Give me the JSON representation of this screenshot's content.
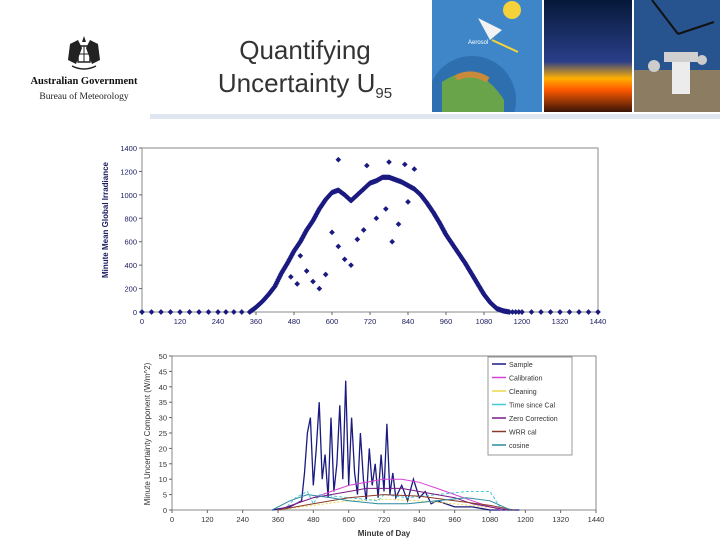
{
  "header": {
    "title_line1": "Quantifying",
    "title_line2": "Uncertainty U",
    "title_subscript": "95",
    "org_name": "Australian Government",
    "org_unit": "Bureau of Meteorology",
    "aerosol_label": "Aerosol"
  },
  "colors": {
    "navy": "#1a1a80",
    "sample": "#1a1a80",
    "calibration": "#d642d6",
    "cleaning": "#e8d84c",
    "time_since_cal": "#46c9d6",
    "zero_correction": "#7a1a8a",
    "wrr_cal": "#8a3a2a",
    "cosine": "#2a8aa0"
  },
  "chart_data": [
    {
      "type": "scatter",
      "title": "",
      "xlabel": "",
      "ylabel": "Minute Mean Global Irradiance",
      "xlim": [
        0,
        1440
      ],
      "ylim": [
        0,
        1400
      ],
      "xticks": [
        0,
        120,
        240,
        360,
        480,
        600,
        720,
        840,
        960,
        1080,
        1200,
        1320,
        1440
      ],
      "yticks": [
        0,
        200,
        400,
        600,
        800,
        1000,
        1200,
        1400
      ],
      "grid": false,
      "series": [
        {
          "x": [
            0,
            120,
            240,
            340,
            360,
            380,
            400,
            420,
            440,
            460,
            480,
            500,
            520,
            540,
            560,
            580,
            600,
            620,
            640,
            660,
            680,
            700,
            720,
            740,
            760,
            780,
            800,
            820,
            840,
            860,
            880,
            900,
            920,
            940,
            960,
            980,
            1000,
            1020,
            1040,
            1060,
            1080,
            1100,
            1120,
            1140,
            1160,
            1200,
            1320,
            1440
          ],
          "y": [
            0,
            0,
            0,
            0,
            40,
            90,
            150,
            220,
            330,
            420,
            520,
            600,
            700,
            780,
            880,
            960,
            1020,
            1040,
            1000,
            950,
            1000,
            1050,
            1100,
            1120,
            1150,
            1150,
            1130,
            1110,
            1080,
            1050,
            1000,
            930,
            850,
            760,
            660,
            580,
            500,
            420,
            330,
            240,
            150,
            80,
            30,
            10,
            0,
            0,
            0,
            0
          ]
        },
        {
          "x": [
            470,
            490,
            500,
            520,
            540,
            560,
            580,
            600,
            620,
            640,
            660,
            680,
            700,
            740,
            770,
            790,
            810,
            840
          ],
          "y": [
            300,
            240,
            480,
            350,
            260,
            200,
            320,
            680,
            560,
            450,
            400,
            620,
            700,
            800,
            880,
            600,
            750,
            940
          ]
        },
        {
          "x": [
            620,
            710,
            780,
            830,
            860
          ],
          "y": [
            1300,
            1250,
            1280,
            1260,
            1220
          ]
        }
      ]
    },
    {
      "type": "line",
      "title": "",
      "xlabel": "Minute of Day",
      "ylabel": "Minute Uncertainty Component (W/m^2)",
      "xlim": [
        0,
        1440
      ],
      "ylim": [
        0,
        50
      ],
      "xticks": [
        0,
        120,
        240,
        360,
        480,
        600,
        720,
        840,
        960,
        1080,
        1200,
        1320,
        1440
      ],
      "yticks": [
        0,
        5,
        10,
        15,
        20,
        25,
        30,
        35,
        40,
        45,
        50
      ],
      "legend": "top-right",
      "series": [
        {
          "name": "Sample",
          "x": [
            340,
            400,
            440,
            450,
            460,
            470,
            480,
            490,
            500,
            510,
            520,
            530,
            540,
            550,
            560,
            570,
            580,
            590,
            600,
            610,
            620,
            630,
            640,
            650,
            660,
            670,
            680,
            690,
            700,
            710,
            720,
            730,
            740,
            750,
            760,
            780,
            800,
            820,
            840,
            860,
            880,
            900,
            960,
            1020,
            1080,
            1180
          ],
          "y": [
            0,
            1,
            3,
            12,
            25,
            30,
            8,
            20,
            35,
            10,
            18,
            4,
            30,
            6,
            15,
            34,
            10,
            42,
            8,
            30,
            12,
            5,
            25,
            10,
            3,
            20,
            8,
            15,
            4,
            18,
            6,
            28,
            5,
            12,
            4,
            8,
            3,
            10,
            4,
            6,
            2,
            3,
            1,
            1,
            0,
            0
          ]
        },
        {
          "name": "Calibration",
          "x": [
            360,
            420,
            480,
            540,
            600,
            660,
            720,
            780,
            840,
            900,
            960,
            1020,
            1080,
            1120
          ],
          "y": [
            0,
            2,
            4,
            6,
            8,
            9,
            10,
            10,
            9,
            7,
            5,
            3,
            1,
            0
          ]
        },
        {
          "name": "Cleaning",
          "x": [
            360,
            480,
            600,
            720,
            840,
            960,
            1080,
            1140
          ],
          "y": [
            0,
            1.5,
            3,
            3.5,
            3,
            2,
            0.8,
            0
          ]
        },
        {
          "name": "Time since Cal",
          "x": [
            380,
            420,
            460,
            480,
            500,
            600,
            700,
            720,
            800,
            900,
            1000,
            1080,
            1120
          ],
          "y": [
            0,
            4,
            6,
            2,
            5,
            4,
            3,
            5,
            4,
            5,
            6,
            6,
            0
          ]
        },
        {
          "name": "Zero Correction",
          "x": [
            360,
            420,
            480,
            540,
            600,
            660,
            720,
            780,
            840,
            900,
            960,
            1020,
            1080,
            1140
          ],
          "y": [
            0,
            2,
            4,
            5,
            6,
            7,
            7,
            7,
            6,
            5,
            4,
            2,
            1,
            0
          ]
        },
        {
          "name": "WRR cal",
          "x": [
            360,
            480,
            600,
            720,
            840,
            960,
            1080,
            1160
          ],
          "y": [
            0,
            2,
            4,
            5,
            4.5,
            3,
            1.5,
            0
          ]
        },
        {
          "name": "cosine",
          "x": [
            340,
            400,
            460,
            540,
            600,
            700,
            800,
            900,
            1000,
            1080,
            1150
          ],
          "y": [
            0,
            3,
            5,
            4,
            3,
            2,
            2,
            3,
            4,
            3,
            0
          ]
        }
      ]
    }
  ]
}
